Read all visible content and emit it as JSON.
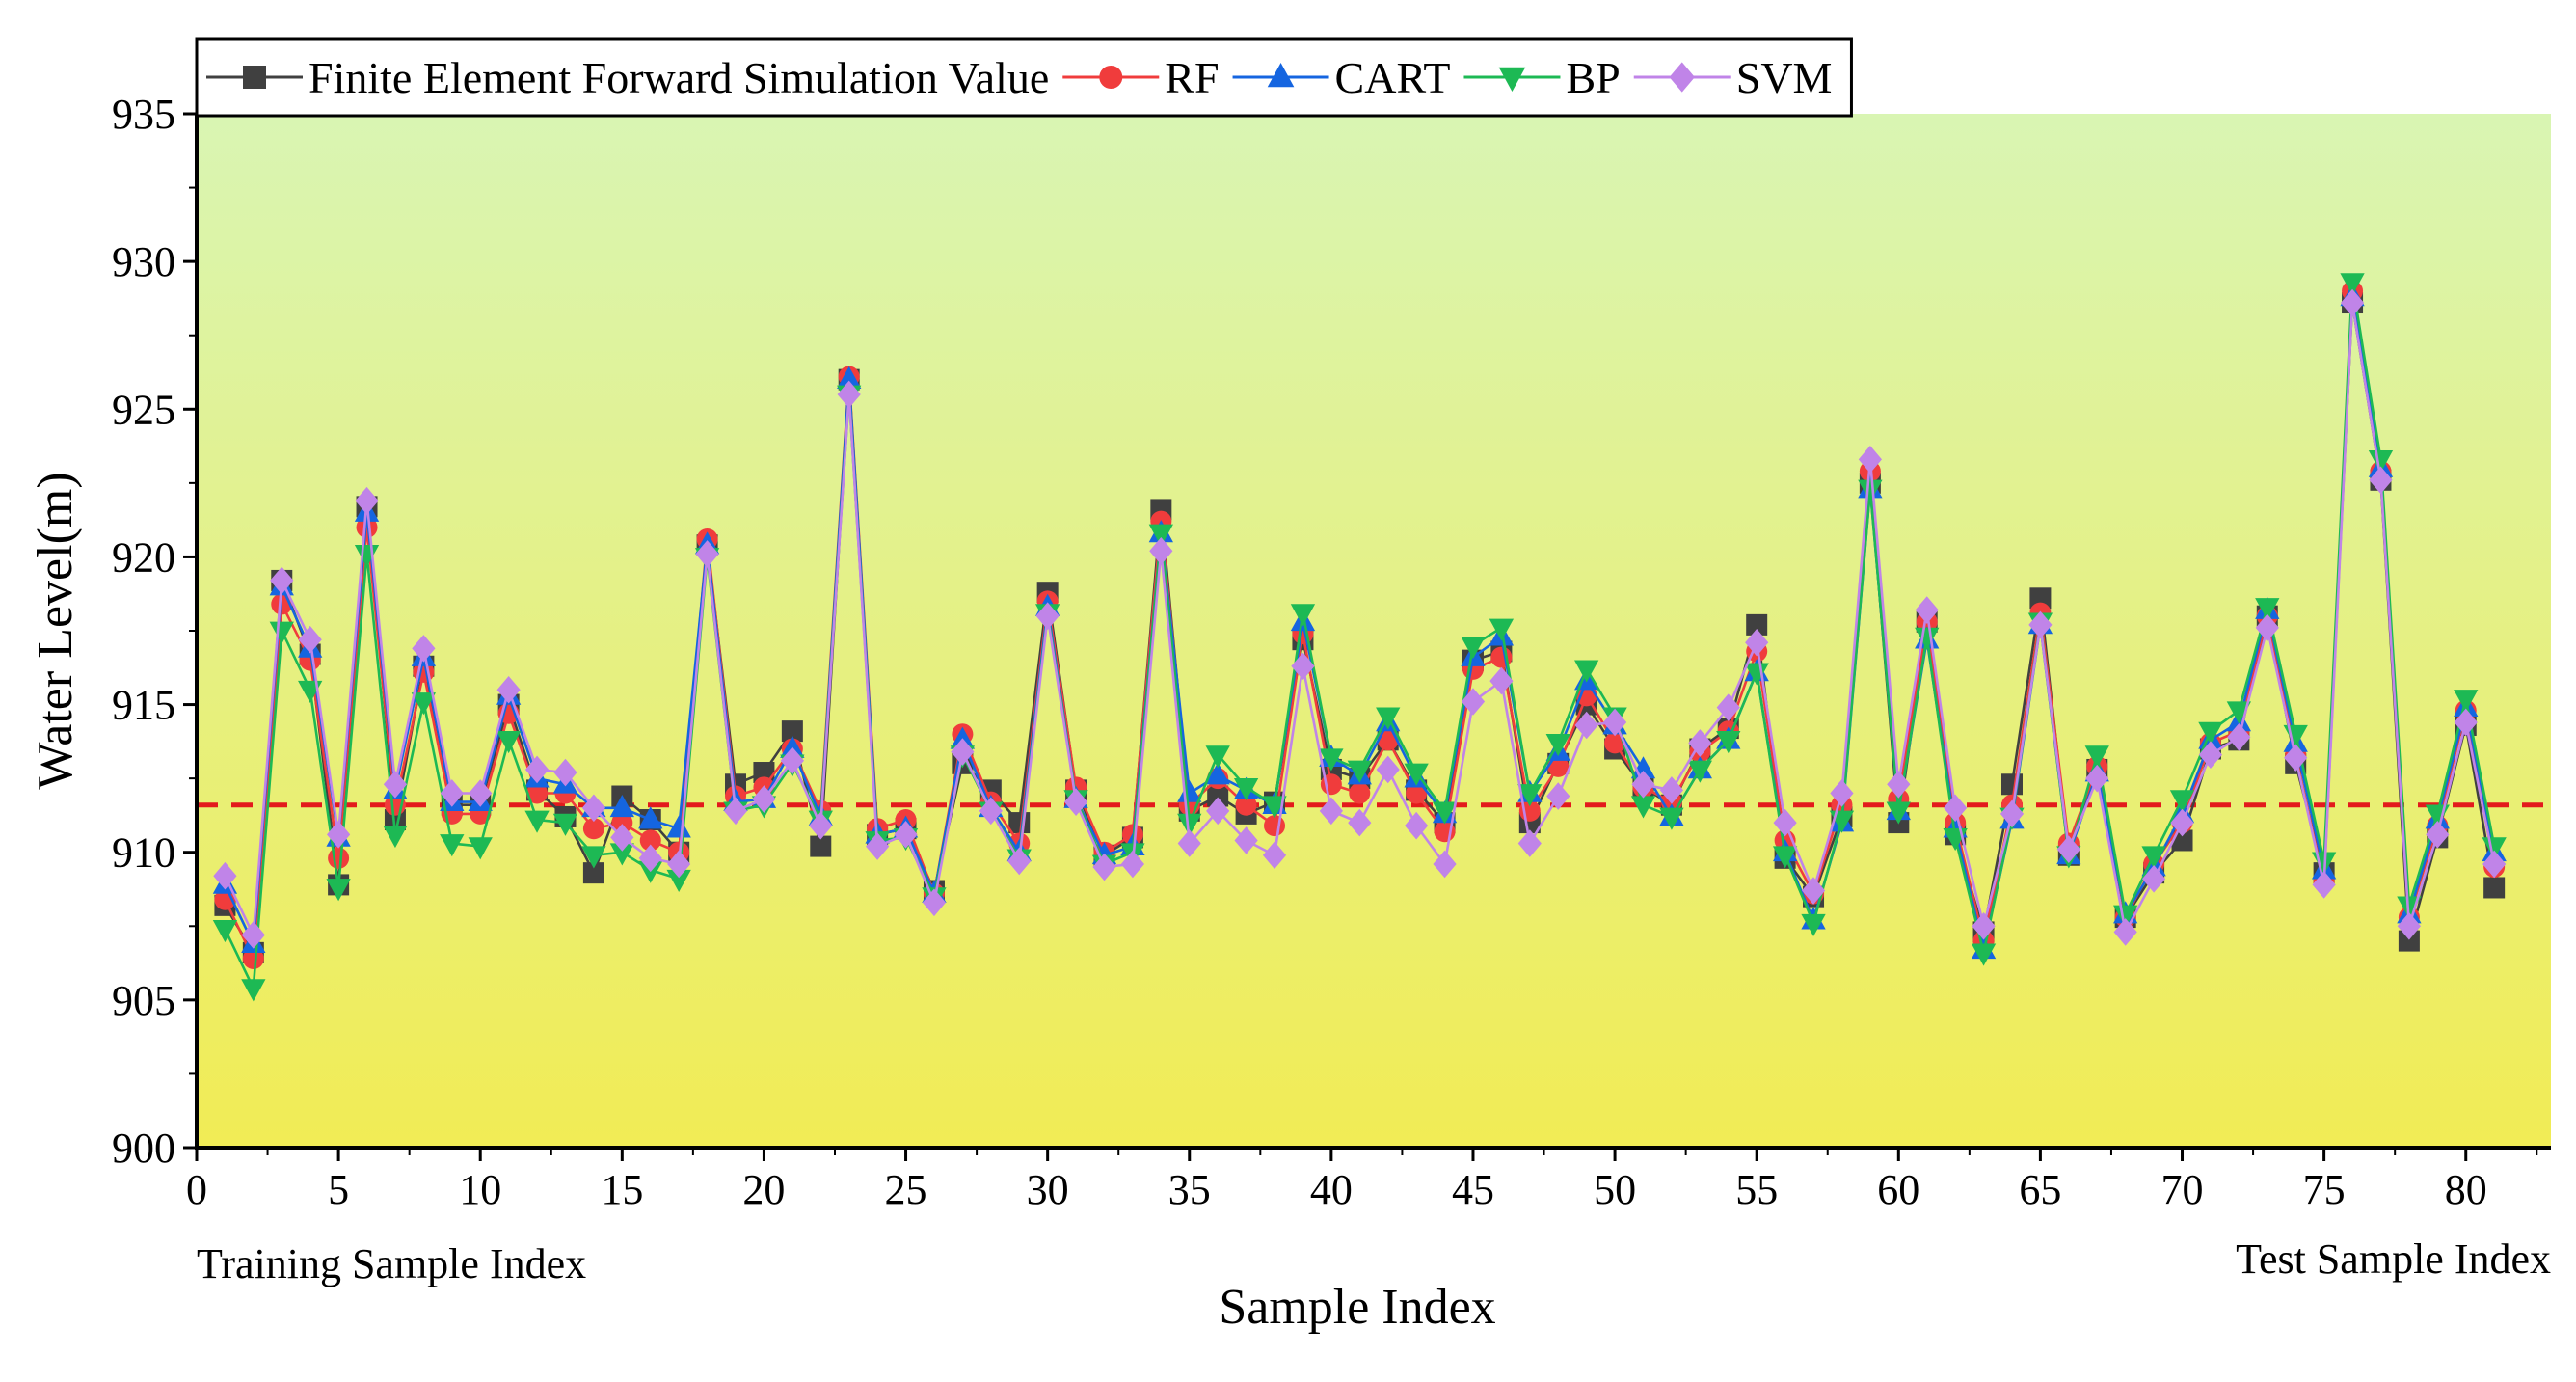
{
  "chart_data": {
    "type": "line",
    "title": "",
    "xlabel": "Sample Index",
    "ylabel": "Water Level(m)",
    "xlim": [
      0,
      83
    ],
    "ylim": [
      900,
      935
    ],
    "x_ticks": [
      0,
      5,
      10,
      15,
      20,
      25,
      30,
      35,
      40,
      45,
      50,
      55,
      60,
      65,
      70,
      75,
      80
    ],
    "y_ticks": [
      900,
      905,
      910,
      915,
      920,
      925,
      930,
      935
    ],
    "region_labels": {
      "training": "Training Sample Index",
      "test": "Test Sample Index"
    },
    "reference_line": {
      "y": 911.6,
      "style": "dashed",
      "color": "#e31a1c"
    },
    "background_gradient": {
      "top": "#d9f5b3",
      "bottom": "#f1ec55"
    },
    "legend_position": "top-left",
    "x": [
      1,
      2,
      3,
      4,
      5,
      6,
      7,
      8,
      9,
      10,
      11,
      12,
      13,
      14,
      15,
      16,
      17,
      18,
      19,
      20,
      21,
      22,
      23,
      24,
      25,
      26,
      27,
      28,
      29,
      30,
      31,
      32,
      33,
      34,
      35,
      36,
      37,
      38,
      39,
      40,
      41,
      42,
      43,
      44,
      45,
      46,
      47,
      48,
      49,
      50,
      51,
      52,
      53,
      54,
      55,
      56,
      57,
      58,
      59,
      60,
      61,
      62,
      63,
      64,
      65,
      66,
      67,
      68,
      69,
      70,
      71,
      72,
      73,
      74,
      75,
      76,
      77,
      78,
      79,
      80,
      81
    ],
    "series": [
      {
        "name": "Finite Element Forward Simulation Value",
        "marker": "square",
        "color": "#404040",
        "values": [
          908.2,
          906.6,
          919.2,
          916.7,
          908.9,
          921.7,
          911.1,
          916.3,
          911.6,
          911.6,
          915.0,
          912.1,
          911.2,
          909.3,
          911.9,
          911.1,
          910.0,
          920.4,
          912.3,
          912.7,
          914.1,
          910.2,
          926.0,
          910.6,
          910.8,
          908.7,
          913.0,
          912.1,
          911.0,
          918.8,
          912.1,
          909.9,
          910.5,
          921.6,
          911.4,
          911.9,
          911.3,
          911.7,
          917.2,
          912.8,
          912.5,
          913.8,
          912.1,
          911.0,
          916.5,
          916.8,
          911.0,
          913.0,
          915.0,
          913.5,
          912.2,
          911.6,
          913.5,
          914.2,
          917.7,
          909.8,
          908.5,
          911.2,
          922.5,
          911.0,
          917.8,
          910.6,
          907.3,
          912.3,
          918.6,
          909.9,
          912.8,
          907.8,
          909.3,
          910.4,
          913.5,
          913.8,
          918.0,
          913.0,
          909.3,
          928.6,
          922.6,
          907.0,
          910.5,
          914.3,
          908.8
        ]
      },
      {
        "name": "RF",
        "marker": "circle",
        "color": "#f03c3c",
        "values": [
          908.4,
          906.4,
          918.4,
          916.5,
          909.8,
          921.0,
          911.6,
          916.1,
          911.3,
          911.3,
          914.7,
          912.0,
          912.0,
          910.8,
          911.0,
          910.4,
          910.0,
          920.6,
          911.9,
          912.2,
          913.5,
          911.4,
          926.1,
          910.8,
          911.1,
          908.6,
          914.0,
          911.7,
          910.3,
          918.5,
          912.2,
          910.0,
          910.6,
          921.2,
          911.6,
          912.5,
          911.6,
          910.9,
          917.4,
          912.3,
          912.0,
          913.8,
          912.0,
          910.7,
          916.2,
          916.6,
          911.4,
          912.9,
          915.3,
          913.7,
          912.2,
          911.7,
          913.4,
          914.1,
          916.8,
          910.4,
          908.6,
          911.6,
          922.9,
          911.8,
          917.8,
          911.0,
          907.0,
          911.6,
          918.1,
          910.3,
          912.9,
          907.8,
          909.6,
          911.0,
          913.7,
          914.1,
          918.0,
          913.3,
          909.0,
          929.0,
          922.9,
          907.8,
          910.9,
          914.8,
          909.5
        ]
      },
      {
        "name": "CART",
        "marker": "triangle-up",
        "color": "#1565e0",
        "values": [
          908.9,
          906.9,
          919.0,
          916.9,
          910.5,
          921.5,
          912.1,
          916.6,
          911.7,
          911.7,
          915.3,
          912.5,
          912.3,
          911.5,
          911.5,
          911.1,
          910.8,
          920.4,
          911.7,
          911.8,
          913.5,
          911.2,
          926.0,
          910.6,
          910.8,
          908.6,
          913.8,
          911.5,
          910.0,
          918.3,
          911.8,
          909.9,
          910.2,
          920.8,
          912.0,
          912.6,
          912.1,
          911.6,
          917.8,
          913.2,
          912.6,
          914.4,
          912.5,
          911.3,
          916.6,
          917.3,
          912.0,
          913.4,
          915.8,
          914.3,
          912.8,
          911.2,
          912.8,
          913.8,
          916.1,
          910.0,
          907.7,
          911.0,
          922.3,
          911.4,
          917.2,
          910.8,
          906.7,
          911.1,
          917.7,
          909.9,
          912.7,
          907.9,
          909.5,
          911.3,
          913.8,
          914.4,
          918.2,
          913.7,
          909.4,
          928.8,
          923.0,
          907.9,
          911.1,
          914.9,
          910.0
        ]
      },
      {
        "name": "BP",
        "marker": "triangle-down",
        "color": "#1db954",
        "values": [
          907.4,
          905.4,
          917.5,
          915.5,
          908.8,
          920.1,
          910.6,
          915.1,
          910.3,
          910.2,
          913.8,
          911.1,
          911.0,
          909.9,
          910.0,
          909.4,
          909.1,
          920.0,
          911.4,
          911.6,
          913.0,
          911.1,
          925.5,
          910.4,
          910.5,
          908.5,
          913.3,
          911.4,
          909.8,
          918.1,
          911.8,
          909.6,
          910.0,
          920.8,
          911.0,
          913.3,
          912.2,
          911.6,
          918.1,
          913.2,
          912.8,
          914.6,
          912.7,
          911.4,
          917.0,
          917.6,
          912.0,
          913.7,
          916.2,
          914.6,
          911.6,
          911.2,
          912.8,
          913.8,
          916.1,
          909.9,
          907.6,
          911.1,
          922.3,
          911.4,
          917.3,
          910.5,
          906.6,
          911.2,
          917.8,
          909.9,
          913.3,
          907.9,
          909.9,
          911.8,
          914.1,
          914.8,
          918.3,
          914.0,
          909.7,
          929.3,
          923.3,
          908.2,
          911.3,
          915.2,
          910.2
        ]
      },
      {
        "name": "SVM",
        "marker": "diamond",
        "color": "#c084e8",
        "values": [
          909.2,
          907.2,
          919.2,
          917.2,
          910.6,
          921.9,
          912.3,
          916.9,
          912.0,
          912.0,
          915.5,
          912.8,
          912.7,
          911.5,
          910.5,
          909.8,
          909.6,
          920.1,
          911.4,
          911.8,
          913.1,
          910.9,
          925.5,
          910.2,
          910.6,
          908.3,
          913.4,
          911.4,
          909.7,
          918.0,
          911.7,
          909.5,
          909.6,
          920.2,
          910.3,
          911.4,
          910.4,
          909.9,
          916.3,
          911.4,
          911.0,
          912.8,
          910.9,
          909.6,
          915.1,
          915.8,
          910.3,
          911.9,
          914.3,
          914.4,
          912.3,
          912.1,
          913.7,
          914.9,
          917.1,
          911.0,
          908.7,
          912.0,
          923.3,
          912.3,
          918.2,
          911.5,
          907.5,
          911.3,
          917.7,
          910.1,
          912.5,
          907.3,
          909.1,
          911.0,
          913.3,
          913.9,
          917.6,
          913.2,
          908.9,
          928.6,
          922.6,
          907.5,
          910.6,
          914.4,
          909.6
        ]
      }
    ]
  }
}
